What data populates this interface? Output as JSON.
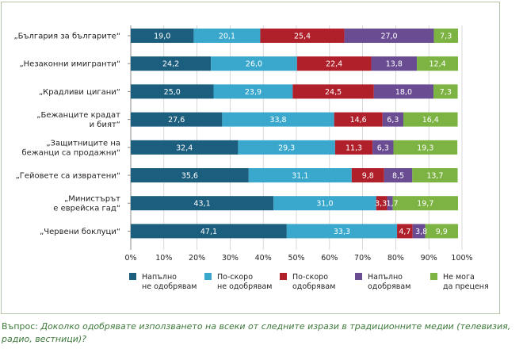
{
  "chart_data": {
    "type": "bar",
    "orientation": "horizontal",
    "stacked": true,
    "categories": [
      [
        "„България за българите“"
      ],
      [
        "„Незаконни имигранти“"
      ],
      [
        "„Крадливи цигани“"
      ],
      [
        "„Бежанците крадат",
        "и бият“"
      ],
      [
        "„Защитниците на",
        "бежанци са продажни“"
      ],
      [
        "„Гейовете са извратени“"
      ],
      [
        "„Министърът",
        "е еврейска гад“"
      ],
      [
        "„Червени боклуци“"
      ]
    ],
    "series": [
      {
        "name": "Напълно не одобрявам",
        "legend": [
          "Напълно",
          "не одобрявам"
        ],
        "color": "#1c5e7e",
        "values": [
          19.0,
          24.2,
          25.0,
          27.6,
          32.4,
          35.6,
          43.1,
          47.1
        ],
        "labels": [
          "19,0",
          "24,2",
          "25,0",
          "27,6",
          "32,4",
          "35,6",
          "43,1",
          "47,1"
        ]
      },
      {
        "name": "По-скоро не одобрявам",
        "legend": [
          "По-скоро",
          "не одобрявам"
        ],
        "color": "#3aa8cd",
        "values": [
          20.1,
          26.0,
          23.9,
          33.8,
          29.3,
          31.1,
          31.0,
          33.3
        ],
        "labels": [
          "20,1",
          "26,0",
          "23,9",
          "33,8",
          "29,3",
          "31,1",
          "31,0",
          "33,3"
        ]
      },
      {
        "name": "По-скоро одобрявам",
        "legend": [
          "По-скоро",
          "одобрявам"
        ],
        "color": "#b0202a",
        "values": [
          25.4,
          22.4,
          24.5,
          14.6,
          11.3,
          9.8,
          3.3,
          4.7
        ],
        "labels": [
          "25,4",
          "22,4",
          "24,5",
          "14,6",
          "11,3",
          "9,8",
          "3,3",
          "4,7"
        ]
      },
      {
        "name": "Напълно одобрявам",
        "legend": [
          "Напълно",
          "одобрявам"
        ],
        "color": "#6a4c93",
        "values": [
          27.0,
          13.8,
          18.0,
          6.3,
          6.3,
          8.5,
          1.7,
          3.8
        ],
        "labels": [
          "27,0",
          "13,8",
          "18,0",
          "6,3",
          "6,3",
          "8,5",
          "1,7",
          "3,8"
        ]
      },
      {
        "name": "Не мога да преценя",
        "legend": [
          "Не мога",
          "да преценя"
        ],
        "color": "#7db343",
        "values": [
          7.3,
          12.4,
          7.3,
          16.4,
          19.3,
          13.7,
          19.7,
          9.9
        ],
        "labels": [
          "7,3",
          "12,4",
          "7,3",
          "16,4",
          "19,3",
          "13,7",
          "19,7",
          "9,9"
        ]
      }
    ],
    "x_ticks": [
      "0%",
      "10%",
      "20%",
      "30%",
      "40%",
      "50%",
      "60%",
      "70%",
      "80%",
      "90%",
      "100%"
    ],
    "xlim": [
      0,
      100
    ],
    "grid": true,
    "legend_position": "bottom"
  },
  "question": {
    "prefix": "Въпрос: ",
    "text": "Доколко одобрявате използването на всеки от следните изрази в традиционните медии (телевизия, радио, вестници)?"
  }
}
